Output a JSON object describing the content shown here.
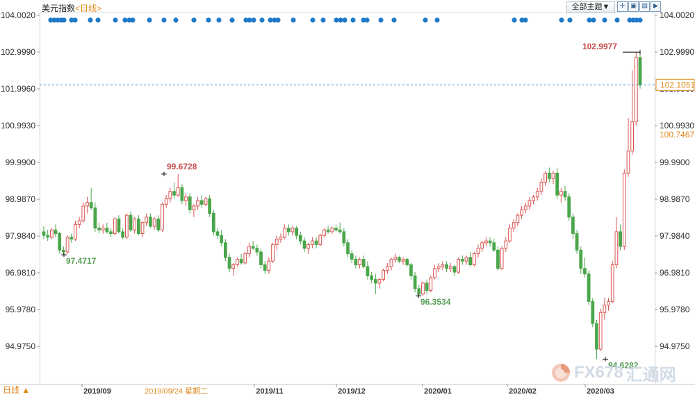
{
  "header": {
    "title": "美元指数",
    "period_tag": "<日线>",
    "theme_button": "全部主题▼",
    "tool_icons": [
      "crosshair-icon",
      "zoom-fit-icon",
      "step-icon",
      "play-icon"
    ]
  },
  "footer": {
    "period_button": "日线 ▲",
    "hover_date": "2019/09/24 星期二"
  },
  "watermark": {
    "text": "FX678",
    "cn": "汇通网"
  },
  "colors": {
    "up": "#d9534f",
    "down": "#4aa64a",
    "marker": "#1f7ac8",
    "current_line": "#3a8fd6",
    "annotation_red": "#c94a4a",
    "annotation_green": "#5aa05a",
    "orange": "#e08a1e"
  },
  "chart_data": {
    "type": "candlestick",
    "title": "美元指数",
    "xlabel": "",
    "ylabel": "",
    "ylim": [
      94.5,
      104.2
    ],
    "y_ticks": [
      "104.0020",
      "102.9990",
      "101.9960",
      "100.9930",
      "99.9900",
      "98.9870",
      "97.9840",
      "96.9810",
      "95.9780",
      "94.9750"
    ],
    "x_ticks": [
      "2019/09",
      "2019/11",
      "2019/12",
      "2020/01",
      "2020/02",
      "2020/03"
    ],
    "current_value": "102.1051",
    "secondary_value": "100.7467",
    "annotations": [
      {
        "label": "99.6728",
        "value": 99.6728,
        "kind": "high"
      },
      {
        "label": "97.4717",
        "value": 97.4717,
        "kind": "low"
      },
      {
        "label": "96.3534",
        "value": 96.3534,
        "kind": "low"
      },
      {
        "label": "94.6282",
        "value": 94.6282,
        "kind": "low"
      },
      {
        "label": "102.9977",
        "value": 102.9977,
        "kind": "high"
      }
    ],
    "candles": [
      [
        98.1,
        98.25,
        97.9,
        98.0
      ],
      [
        98.0,
        98.15,
        97.85,
        97.95
      ],
      [
        97.95,
        98.2,
        97.9,
        98.15
      ],
      [
        98.15,
        98.3,
        97.95,
        98.05
      ],
      [
        98.05,
        98.1,
        97.5,
        97.6
      ],
      [
        97.6,
        97.7,
        97.47,
        97.55
      ],
      [
        97.55,
        98.0,
        97.5,
        97.95
      ],
      [
        97.95,
        98.05,
        97.8,
        97.9
      ],
      [
        97.9,
        98.4,
        97.85,
        98.3
      ],
      [
        98.3,
        98.5,
        98.2,
        98.4
      ],
      [
        98.4,
        98.9,
        98.35,
        98.8
      ],
      [
        98.8,
        99.05,
        98.6,
        98.9
      ],
      [
        98.9,
        99.3,
        98.7,
        98.75
      ],
      [
        98.75,
        98.9,
        98.1,
        98.2
      ],
      [
        98.2,
        98.35,
        98.05,
        98.15
      ],
      [
        98.15,
        98.3,
        98.05,
        98.2
      ],
      [
        98.2,
        98.35,
        98.05,
        98.1
      ],
      [
        98.1,
        98.2,
        97.95,
        98.05
      ],
      [
        98.05,
        98.5,
        98.0,
        98.45
      ],
      [
        98.45,
        98.55,
        98.05,
        98.1
      ],
      [
        98.1,
        98.2,
        97.9,
        97.95
      ],
      [
        97.95,
        98.6,
        97.9,
        98.55
      ],
      [
        98.55,
        98.65,
        98.1,
        98.15
      ],
      [
        98.15,
        98.5,
        98.05,
        98.45
      ],
      [
        98.45,
        98.55,
        98.0,
        98.05
      ],
      [
        98.05,
        98.4,
        97.95,
        98.35
      ],
      [
        98.35,
        98.6,
        98.25,
        98.5
      ],
      [
        98.5,
        98.6,
        98.2,
        98.25
      ],
      [
        98.25,
        98.5,
        98.15,
        98.45
      ],
      [
        98.45,
        98.55,
        98.1,
        98.15
      ],
      [
        98.15,
        98.9,
        98.1,
        98.85
      ],
      [
        98.85,
        99.1,
        98.75,
        99.0
      ],
      [
        99.0,
        99.3,
        98.9,
        99.2
      ],
      [
        99.2,
        99.45,
        99.0,
        99.1
      ],
      [
        99.1,
        99.67,
        99.05,
        99.3
      ],
      [
        99.3,
        99.4,
        98.85,
        98.95
      ],
      [
        98.95,
        99.15,
        98.8,
        99.05
      ],
      [
        99.05,
        99.15,
        98.6,
        98.7
      ],
      [
        98.7,
        98.85,
        98.5,
        98.8
      ],
      [
        98.8,
        99.05,
        98.7,
        98.95
      ],
      [
        98.95,
        99.1,
        98.75,
        98.85
      ],
      [
        98.85,
        99.05,
        98.8,
        99.0
      ],
      [
        99.0,
        99.1,
        98.5,
        98.6
      ],
      [
        98.6,
        98.7,
        98.0,
        98.1
      ],
      [
        98.1,
        98.2,
        97.9,
        98.0
      ],
      [
        98.0,
        98.15,
        97.7,
        97.8
      ],
      [
        97.8,
        97.9,
        97.3,
        97.4
      ],
      [
        97.4,
        97.5,
        97.0,
        97.1
      ],
      [
        97.1,
        97.25,
        96.9,
        97.2
      ],
      [
        97.2,
        97.4,
        97.15,
        97.35
      ],
      [
        97.35,
        97.5,
        97.2,
        97.25
      ],
      [
        97.25,
        97.55,
        97.2,
        97.5
      ],
      [
        97.5,
        97.8,
        97.4,
        97.7
      ],
      [
        97.7,
        97.85,
        97.6,
        97.65
      ],
      [
        97.65,
        97.75,
        97.45,
        97.55
      ],
      [
        97.55,
        97.65,
        97.1,
        97.2
      ],
      [
        97.2,
        97.3,
        96.95,
        97.05
      ],
      [
        97.05,
        97.4,
        96.95,
        97.3
      ],
      [
        97.3,
        97.8,
        97.25,
        97.75
      ],
      [
        97.75,
        98.0,
        97.6,
        97.9
      ],
      [
        97.9,
        98.05,
        97.8,
        97.95
      ],
      [
        97.95,
        98.3,
        97.9,
        98.2
      ],
      [
        98.2,
        98.3,
        98.0,
        98.1
      ],
      [
        98.1,
        98.25,
        98.0,
        98.2
      ],
      [
        98.2,
        98.25,
        97.9,
        98.0
      ],
      [
        98.0,
        98.1,
        97.75,
        97.85
      ],
      [
        97.85,
        97.95,
        97.55,
        97.65
      ],
      [
        97.65,
        97.8,
        97.5,
        97.75
      ],
      [
        97.75,
        97.95,
        97.65,
        97.85
      ],
      [
        97.85,
        97.95,
        97.65,
        97.75
      ],
      [
        97.75,
        98.05,
        97.7,
        98.0
      ],
      [
        98.0,
        98.2,
        97.95,
        98.15
      ],
      [
        98.15,
        98.25,
        98.05,
        98.1
      ],
      [
        98.1,
        98.25,
        98.05,
        98.2
      ],
      [
        98.2,
        98.3,
        98.1,
        98.15
      ],
      [
        98.15,
        98.35,
        98.05,
        98.1
      ],
      [
        98.1,
        98.2,
        97.7,
        97.8
      ],
      [
        97.8,
        97.9,
        97.4,
        97.5
      ],
      [
        97.5,
        97.6,
        97.25,
        97.35
      ],
      [
        97.35,
        97.45,
        97.1,
        97.2
      ],
      [
        97.2,
        97.4,
        97.1,
        97.35
      ],
      [
        97.35,
        97.45,
        97.1,
        97.15
      ],
      [
        97.15,
        97.3,
        96.8,
        96.9
      ],
      [
        96.9,
        97.0,
        96.7,
        96.8
      ],
      [
        96.8,
        96.95,
        96.4,
        96.7
      ],
      [
        96.7,
        96.85,
        96.55,
        96.8
      ],
      [
        96.8,
        97.1,
        96.75,
        97.05
      ],
      [
        97.05,
        97.25,
        96.95,
        97.15
      ],
      [
        97.15,
        97.4,
        97.05,
        97.35
      ],
      [
        97.35,
        97.5,
        97.25,
        97.4
      ],
      [
        97.4,
        97.45,
        97.25,
        97.3
      ],
      [
        97.3,
        97.4,
        97.2,
        97.35
      ],
      [
        97.35,
        97.4,
        97.15,
        97.2
      ],
      [
        97.2,
        97.25,
        96.8,
        96.9
      ],
      [
        96.9,
        97.0,
        96.45,
        96.55
      ],
      [
        96.55,
        96.65,
        96.35,
        96.4
      ],
      [
        96.4,
        96.75,
        96.35,
        96.7
      ],
      [
        96.7,
        96.8,
        96.4,
        96.5
      ],
      [
        96.5,
        96.9,
        96.45,
        96.85
      ],
      [
        96.85,
        97.2,
        96.8,
        97.1
      ],
      [
        97.1,
        97.25,
        97.0,
        97.15
      ],
      [
        97.15,
        97.3,
        97.05,
        97.2
      ],
      [
        97.2,
        97.3,
        97.0,
        97.1
      ],
      [
        97.1,
        97.25,
        97.0,
        97.15
      ],
      [
        97.15,
        97.2,
        96.9,
        97.0
      ],
      [
        97.0,
        97.4,
        96.95,
        97.35
      ],
      [
        97.35,
        97.45,
        97.2,
        97.3
      ],
      [
        97.3,
        97.45,
        97.2,
        97.4
      ],
      [
        97.4,
        97.55,
        97.15,
        97.2
      ],
      [
        97.2,
        97.55,
        97.15,
        97.5
      ],
      [
        97.5,
        97.75,
        97.4,
        97.65
      ],
      [
        97.65,
        97.85,
        97.55,
        97.8
      ],
      [
        97.8,
        97.95,
        97.7,
        97.85
      ],
      [
        97.85,
        97.95,
        97.7,
        97.8
      ],
      [
        97.8,
        97.9,
        97.55,
        97.6
      ],
      [
        97.6,
        97.7,
        97.05,
        97.1
      ],
      [
        97.1,
        97.7,
        97.05,
        97.65
      ],
      [
        97.65,
        97.95,
        97.55,
        97.85
      ],
      [
        97.85,
        98.3,
        97.8,
        98.2
      ],
      [
        98.2,
        98.45,
        98.1,
        98.35
      ],
      [
        98.35,
        98.6,
        98.25,
        98.55
      ],
      [
        98.55,
        98.8,
        98.45,
        98.7
      ],
      [
        98.7,
        98.9,
        98.6,
        98.8
      ],
      [
        98.8,
        99.05,
        98.7,
        98.95
      ],
      [
        98.95,
        99.1,
        98.85,
        99.05
      ],
      [
        99.05,
        99.3,
        98.95,
        99.2
      ],
      [
        99.2,
        99.55,
        99.1,
        99.45
      ],
      [
        99.45,
        99.75,
        99.35,
        99.7
      ],
      [
        99.7,
        99.85,
        99.45,
        99.55
      ],
      [
        99.55,
        99.75,
        99.4,
        99.7
      ],
      [
        99.7,
        99.85,
        99.0,
        99.1
      ],
      [
        99.1,
        99.3,
        98.9,
        99.2
      ],
      [
        99.2,
        99.35,
        98.95,
        99.05
      ],
      [
        99.05,
        99.15,
        98.4,
        98.5
      ],
      [
        98.5,
        98.6,
        97.9,
        98.05
      ],
      [
        98.05,
        98.15,
        97.5,
        97.6
      ],
      [
        97.6,
        97.7,
        96.95,
        97.1
      ],
      [
        97.1,
        97.4,
        96.85,
        96.95
      ],
      [
        96.95,
        97.05,
        96.1,
        96.2
      ],
      [
        96.2,
        96.3,
        95.5,
        95.6
      ],
      [
        95.6,
        95.7,
        94.63,
        94.9
      ],
      [
        94.9,
        96.0,
        94.85,
        95.9
      ],
      [
        95.9,
        96.3,
        95.7,
        96.1
      ],
      [
        96.1,
        96.3,
        95.95,
        96.2
      ],
      [
        96.2,
        97.3,
        96.15,
        97.2
      ],
      [
        97.2,
        98.5,
        97.1,
        98.1
      ],
      [
        98.1,
        98.3,
        97.6,
        97.7
      ],
      [
        97.7,
        99.8,
        97.6,
        99.7
      ],
      [
        99.7,
        101.2,
        99.6,
        100.3
      ],
      [
        100.3,
        102.5,
        100.2,
        101.1
      ],
      [
        101.1,
        103.0,
        101.0,
        102.85
      ],
      [
        102.85,
        102.95,
        102.0,
        102.1
      ]
    ]
  }
}
